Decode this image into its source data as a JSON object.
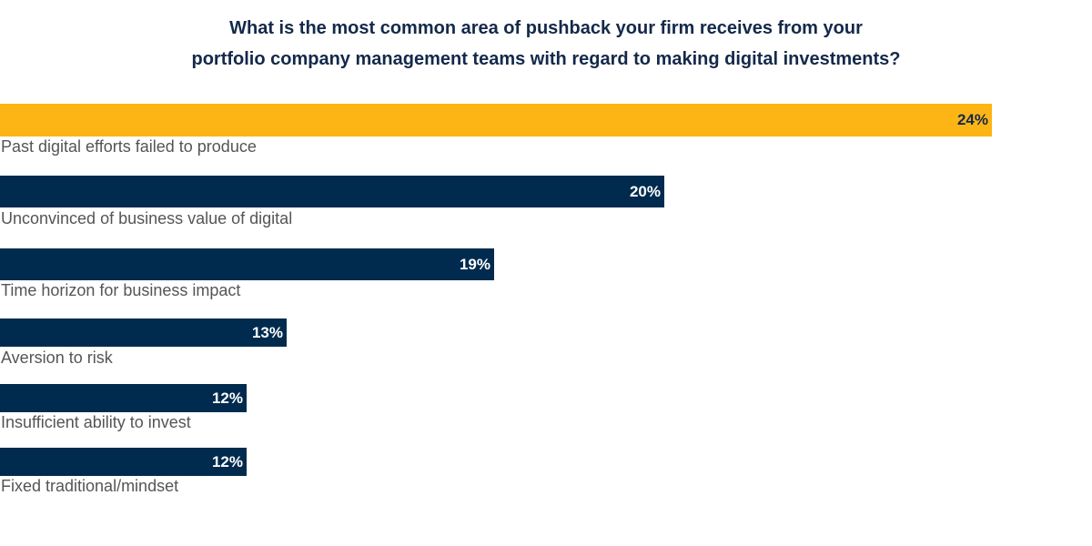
{
  "chart_data": {
    "type": "bar",
    "orientation": "horizontal",
    "title_lines": [
      "What is the most common area of pushback your firm receives from your",
      "portfolio company management teams with regard to making digital investments?"
    ],
    "categories": [
      "Past digital efforts failed to produce",
      "Unconvinced of business value of digital",
      "Time horizon for business impact",
      "Aversion to risk",
      "Insufficient ability to invest",
      "Fixed traditional/mindset"
    ],
    "values": [
      24,
      20,
      19,
      13,
      12,
      12
    ],
    "value_labels": [
      "24%",
      "20%",
      "19%",
      "13%",
      "12%",
      "12%"
    ],
    "unit": "%",
    "grid": false,
    "colors": {
      "highlight": "#FDB515",
      "default": "#002B4E",
      "highlight_text": "#14294a",
      "default_text": "#ffffff"
    }
  }
}
